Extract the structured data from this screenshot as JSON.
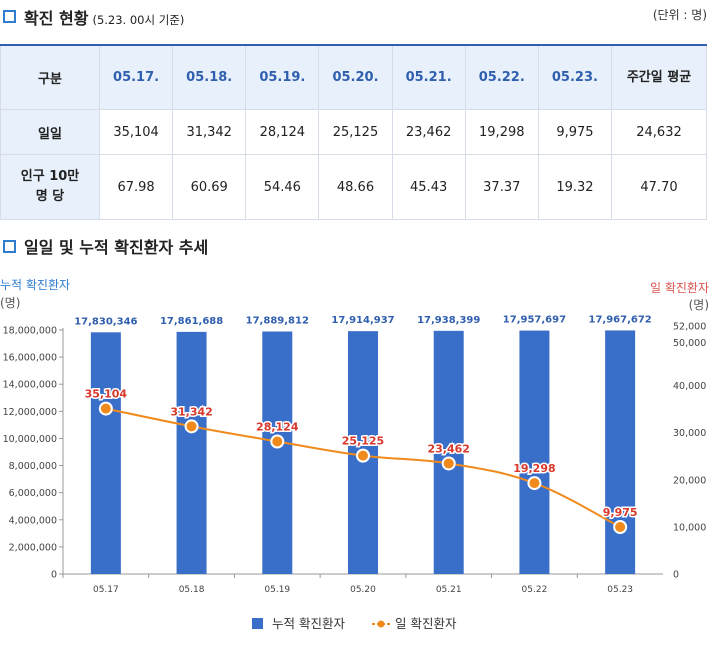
{
  "section1": {
    "title": "확진 현황",
    "subtitle": "(5.23. 00시 기준)",
    "unit": "(단위 : 명)"
  },
  "table": {
    "header": [
      "구분",
      "05.17.",
      "05.18.",
      "05.19.",
      "05.20.",
      "05.21.",
      "05.22.",
      "05.23.",
      "주간일 평균"
    ],
    "rows": [
      {
        "label": "일일",
        "values": [
          "35,104",
          "31,342",
          "28,124",
          "25,125",
          "23,462",
          "19,298",
          "9,975",
          "24,632"
        ]
      },
      {
        "label": "인구 10만 명 당",
        "values": [
          "67.98",
          "60.69",
          "54.46",
          "48.66",
          "45.43",
          "37.37",
          "19.32",
          "47.70"
        ]
      }
    ]
  },
  "section2": {
    "title": "일일 및 누적 확진환자 추세"
  },
  "chart_data": {
    "type": "bar",
    "categories": [
      "05.17",
      "05.18",
      "05.19",
      "05.20",
      "05.21",
      "05.22",
      "05.23"
    ],
    "series": [
      {
        "name": "누적 확진환자",
        "type": "bar",
        "axis": "left",
        "color": "#3a6fc9",
        "values": [
          17830346,
          17861688,
          17889812,
          17914937,
          17938399,
          17957697,
          17967672
        ],
        "labels": [
          "17,830,346",
          "17,861,688",
          "17,889,812",
          "17,914,937",
          "17,938,399",
          "17,957,697",
          "17,967,672"
        ]
      },
      {
        "name": "일 확진환자",
        "type": "line",
        "axis": "right",
        "color": "#f08a1c",
        "values": [
          35104,
          31342,
          28124,
          25125,
          23462,
          19298,
          9975
        ],
        "labels": [
          "35,104",
          "31,342",
          "28,124",
          "25,125",
          "23,462",
          "19,298",
          "9,975"
        ]
      }
    ],
    "y_left": {
      "label": "누적 확진환자",
      "unit_label": "(명)",
      "lim": [
        0,
        18000000
      ],
      "ticks": [
        0,
        2000000,
        4000000,
        6000000,
        8000000,
        10000000,
        12000000,
        14000000,
        16000000,
        18000000
      ],
      "tick_labels": [
        "0",
        "2,000,000",
        "4,000,000",
        "6,000,000",
        "8,000,000",
        "10,000,000",
        "12,000,000",
        "14,000,000",
        "16,000,000",
        "18,000,000"
      ]
    },
    "y_right": {
      "label": "일 확진환자",
      "unit_label": "(명)",
      "lim": [
        0,
        52000
      ],
      "ticks": [
        0,
        10000,
        20000,
        30000,
        40000,
        50000,
        52000
      ],
      "tick_labels": [
        "0",
        "10,000",
        "20,000",
        "30,000",
        "40,000",
        "50,000",
        "52,000"
      ]
    },
    "legend": {
      "position": "bottom"
    },
    "grid": false
  },
  "colors": {
    "accent": "#2f7dd1",
    "left_axis_label": "#2f7dd1",
    "right_axis_label": "#d9534f",
    "line_label": "#d9382b",
    "bar_label": "#2f5fae"
  }
}
